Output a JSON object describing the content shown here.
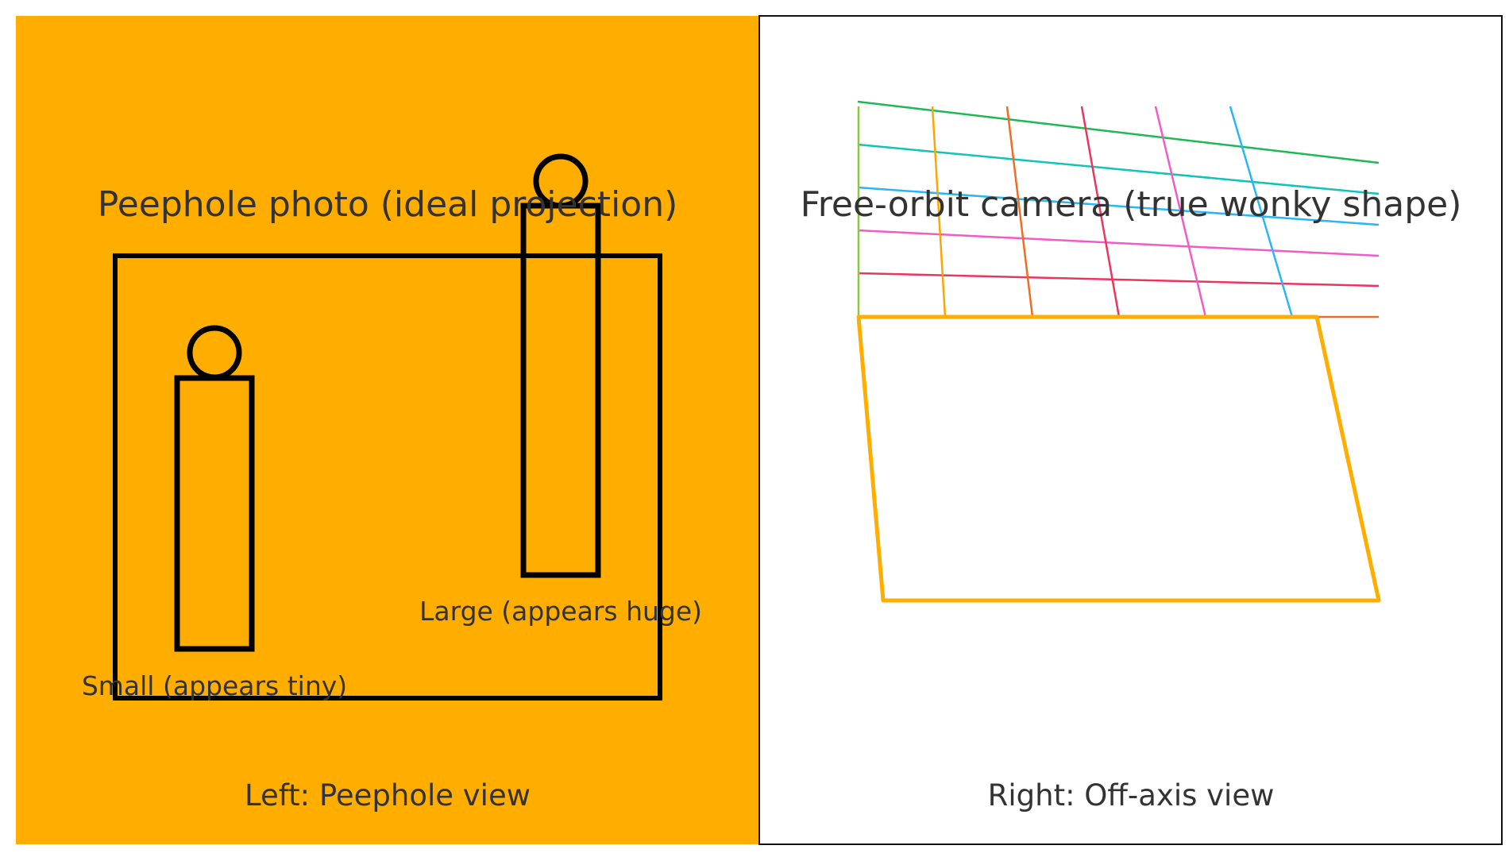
{
  "left_panel": {
    "title": "Peephole photo (ideal projection)",
    "small_label": "Small (appears tiny)",
    "large_label": "Large (appears huge)",
    "footer": "Left: Peephole view",
    "background_color": "#FFAE00"
  },
  "right_panel": {
    "title": "Free-orbit camera (true wonky shape)",
    "footer": "Right: Off-axis view",
    "room_outline_color": "#FFAE00",
    "horizontal_line_colors": [
      "#1DB954",
      "#10C4B8",
      "#29B6F6",
      "#F05BC8",
      "#E8365D",
      "#F26B21"
    ],
    "vertical_line_colors": [
      "#8DC63F",
      "#FFA500",
      "#F26B21",
      "#E8365D",
      "#F05BC8",
      "#29B6F6"
    ]
  }
}
